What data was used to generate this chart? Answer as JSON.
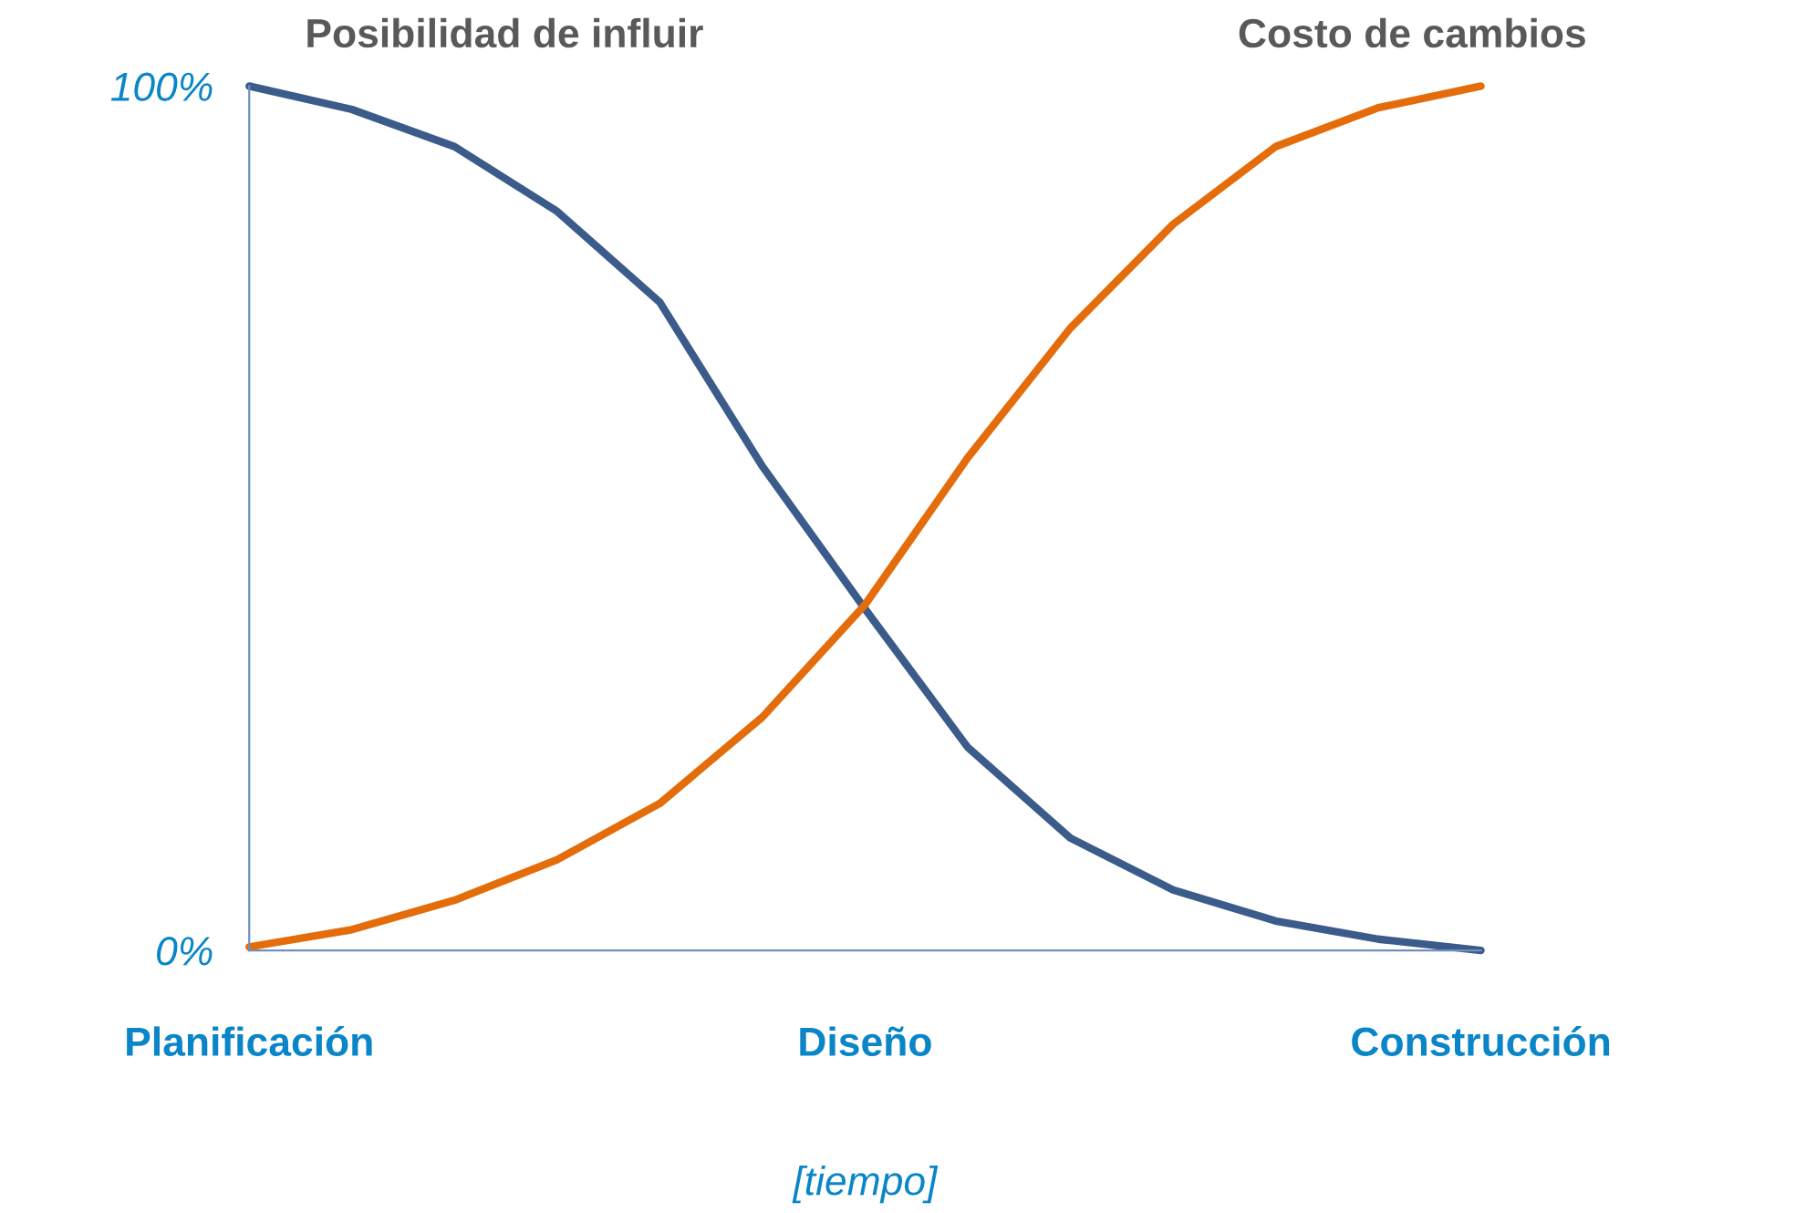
{
  "chart_data": {
    "type": "line",
    "xlabel": "[tiempo]",
    "categories": [
      "Planificación",
      null,
      null,
      null,
      null,
      null,
      "Diseño",
      null,
      null,
      null,
      null,
      null,
      "Construcción"
    ],
    "ylim": [
      0,
      100
    ],
    "yticks": [
      {
        "value": 0,
        "label": "0%"
      },
      {
        "value": 100,
        "label": "100%"
      }
    ],
    "series": [
      {
        "name": "Posibilidad de influir",
        "color": "#3b5b8a",
        "values": [
          100,
          97.3,
          93,
          85.5,
          75,
          56,
          39.5,
          23.5,
          13,
          7,
          3.4,
          1.3,
          0
        ]
      },
      {
        "name": "Costo de cambios",
        "color": "#e46c0a",
        "values": [
          0.4,
          2.4,
          5.8,
          10.5,
          17,
          27,
          40,
          57,
          72,
          84,
          93,
          97.5,
          100
        ]
      }
    ]
  }
}
